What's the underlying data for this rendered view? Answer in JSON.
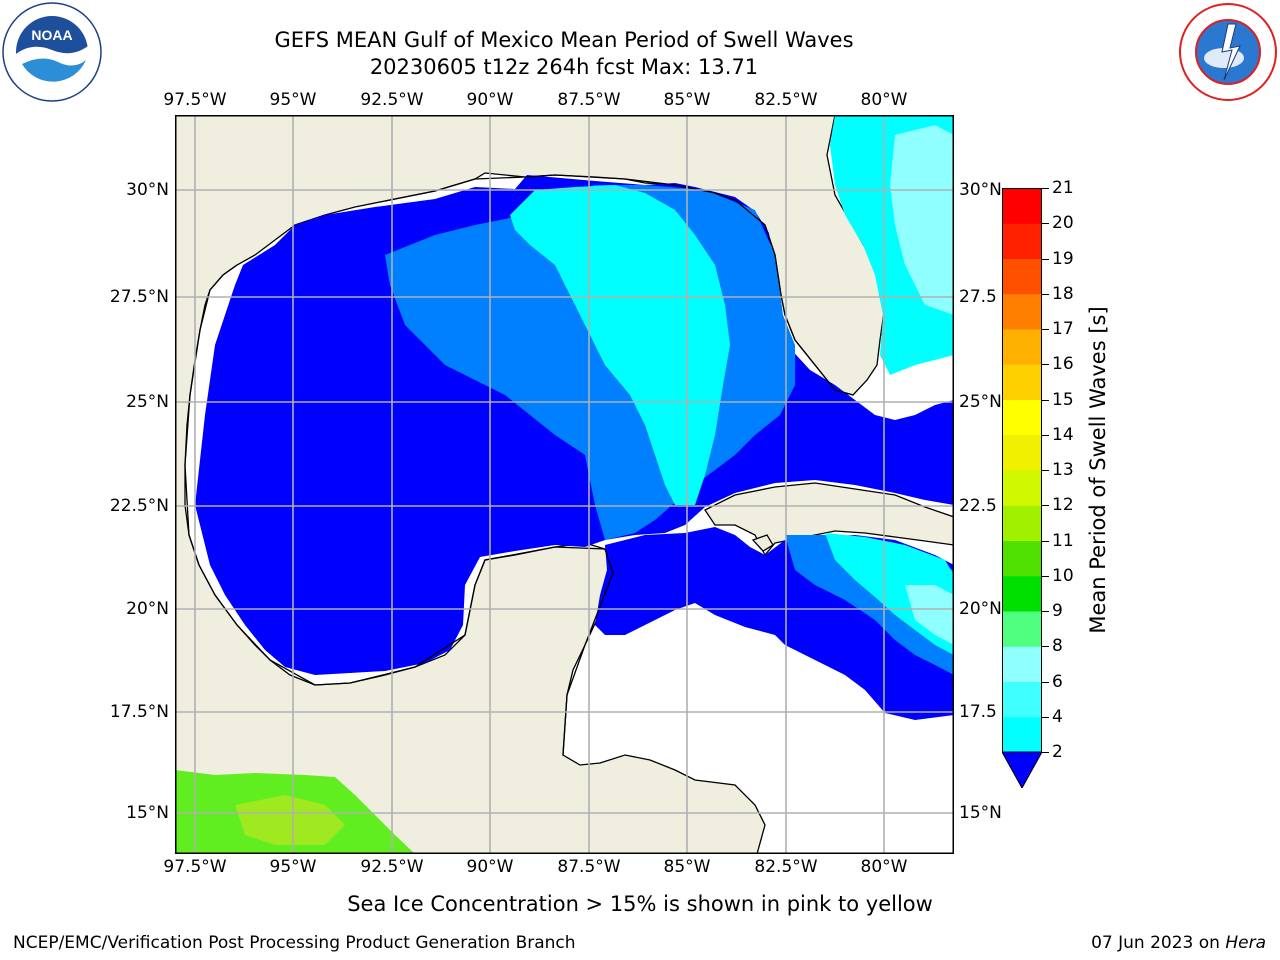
{
  "title_line1": "GEFS MEAN Gulf of Mexico Mean Period of Swell Waves",
  "title_line2": "20230605 t12z 264h fcst   Max: 13.71",
  "logos": {
    "left": "noaa-logo",
    "right": "national-weather-service-logo"
  },
  "longitude_ticks": [
    "97.5°W",
    "95°W",
    "92.5°W",
    "90°W",
    "87.5°W",
    "85°W",
    "82.5°W",
    "80°W"
  ],
  "latitude_ticks_left": [
    "30°N",
    "27.5°N",
    "25°N",
    "22.5°N",
    "20°N",
    "17.5°N",
    "15°N"
  ],
  "latitude_ticks_right": [
    "30°N",
    "27.5",
    "25°N",
    "22.5",
    "20°N",
    "17.5",
    "15°N"
  ],
  "colorbar": {
    "title": "Mean Period of Swell Waves [s]",
    "levels": [
      "2",
      "4",
      "6",
      "8",
      "9",
      "10",
      "11",
      "12",
      "13",
      "14",
      "15",
      "16",
      "17",
      "18",
      "19",
      "20",
      "21"
    ],
    "colors": [
      "#0000ff",
      "#0080ff",
      "#00ffff",
      "#40ffff",
      "#90ffff",
      "#50ff80",
      "#00e000",
      "#50e000",
      "#a0f000",
      "#d0f800",
      "#f0f000",
      "#ffff00",
      "#ffd000",
      "#ffb000",
      "#ff8000",
      "#ff5000",
      "#ff2000",
      "#ff0000"
    ],
    "extend": "min"
  },
  "colors": {
    "land": "#efeedf",
    "grid": "#b0b0b0",
    "coast": "#000000"
  },
  "note": "Sea Ice Concentration > 15% is shown in pink to yellow",
  "footer_left": "NCEP/EMC/Verification Post Processing Product Generation Branch",
  "footer_date": "07 Jun 2023 on ",
  "footer_host": "Hera"
}
